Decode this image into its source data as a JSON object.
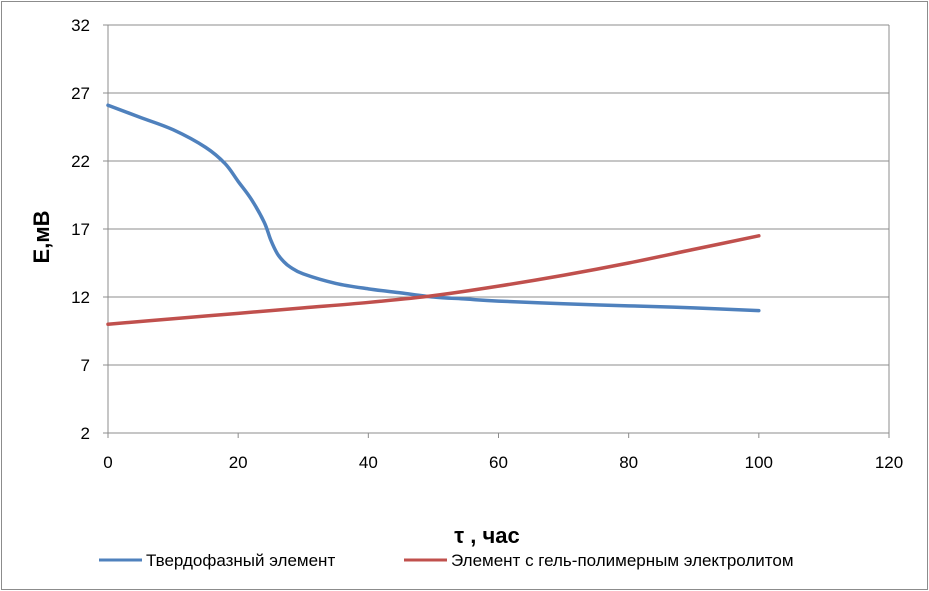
{
  "chart_data": {
    "type": "line",
    "xlabel": "τ , час",
    "ylabel": "Е,мВ",
    "xlim": [
      0,
      120
    ],
    "ylim": [
      2,
      32
    ],
    "xticks": [
      0,
      20,
      40,
      60,
      80,
      100,
      120
    ],
    "yticks": [
      2,
      7,
      12,
      17,
      22,
      27,
      32
    ],
    "grid": "horizontal",
    "legend_position": "bottom",
    "series": [
      {
        "name": "Твердофазный элемент",
        "color": "#4f81bd",
        "x": [
          0,
          5,
          10,
          15,
          18,
          20,
          22,
          24,
          25,
          26,
          27,
          28,
          30,
          35,
          40,
          45,
          50,
          55,
          60,
          70,
          80,
          90,
          100
        ],
        "y": [
          26.1,
          25.2,
          24.3,
          23.0,
          21.8,
          20.5,
          19.2,
          17.5,
          16.2,
          15.2,
          14.6,
          14.2,
          13.7,
          13.0,
          12.6,
          12.3,
          12.0,
          11.85,
          11.7,
          11.5,
          11.35,
          11.2,
          11.0
        ]
      },
      {
        "name": "Элемент с гель-полимерным электролитом",
        "color": "#c0504d",
        "x": [
          0,
          10,
          20,
          30,
          40,
          50,
          60,
          70,
          80,
          90,
          100
        ],
        "y": [
          10.0,
          10.4,
          10.8,
          11.2,
          11.6,
          12.1,
          12.8,
          13.6,
          14.5,
          15.5,
          16.5
        ]
      }
    ]
  }
}
